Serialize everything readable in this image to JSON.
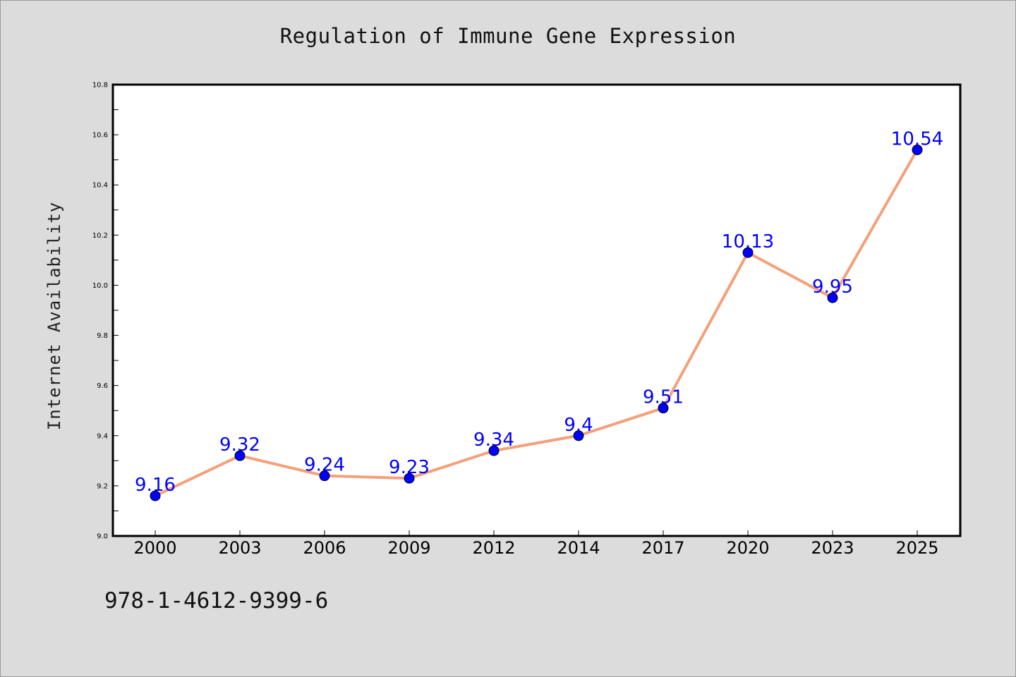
{
  "chart_data": {
    "type": "line",
    "title": "Regulation of Immune Gene Expression",
    "xlabel": "",
    "ylabel": "Internet Availability",
    "categories": [
      "2000",
      "2003",
      "2006",
      "2009",
      "2012",
      "2014",
      "2017",
      "2020",
      "2023",
      "2025"
    ],
    "series": [
      {
        "values": [
          9.16,
          9.32,
          9.24,
          9.23,
          9.34,
          9.4,
          9.51,
          10.13,
          9.95,
          10.54
        ],
        "line_color": "#f4a07a",
        "marker_color": "#0000ff",
        "label_color": "#0000ff"
      }
    ],
    "data_labels": [
      "9.16",
      "9.32",
      "9.24",
      "9.23",
      "9.34",
      "9.4",
      "9.51",
      "10.13",
      "9.95",
      "10.54"
    ],
    "ylim": [
      9.0,
      10.8
    ],
    "yticks": [
      "9.0",
      "9.2",
      "9.4",
      "9.6",
      "9.8",
      "10.0",
      "10.2",
      "10.4",
      "10.6",
      "10.8"
    ],
    "grid": false,
    "legend": "none"
  },
  "footer": {
    "code": "978-1-4612-9399-6"
  }
}
